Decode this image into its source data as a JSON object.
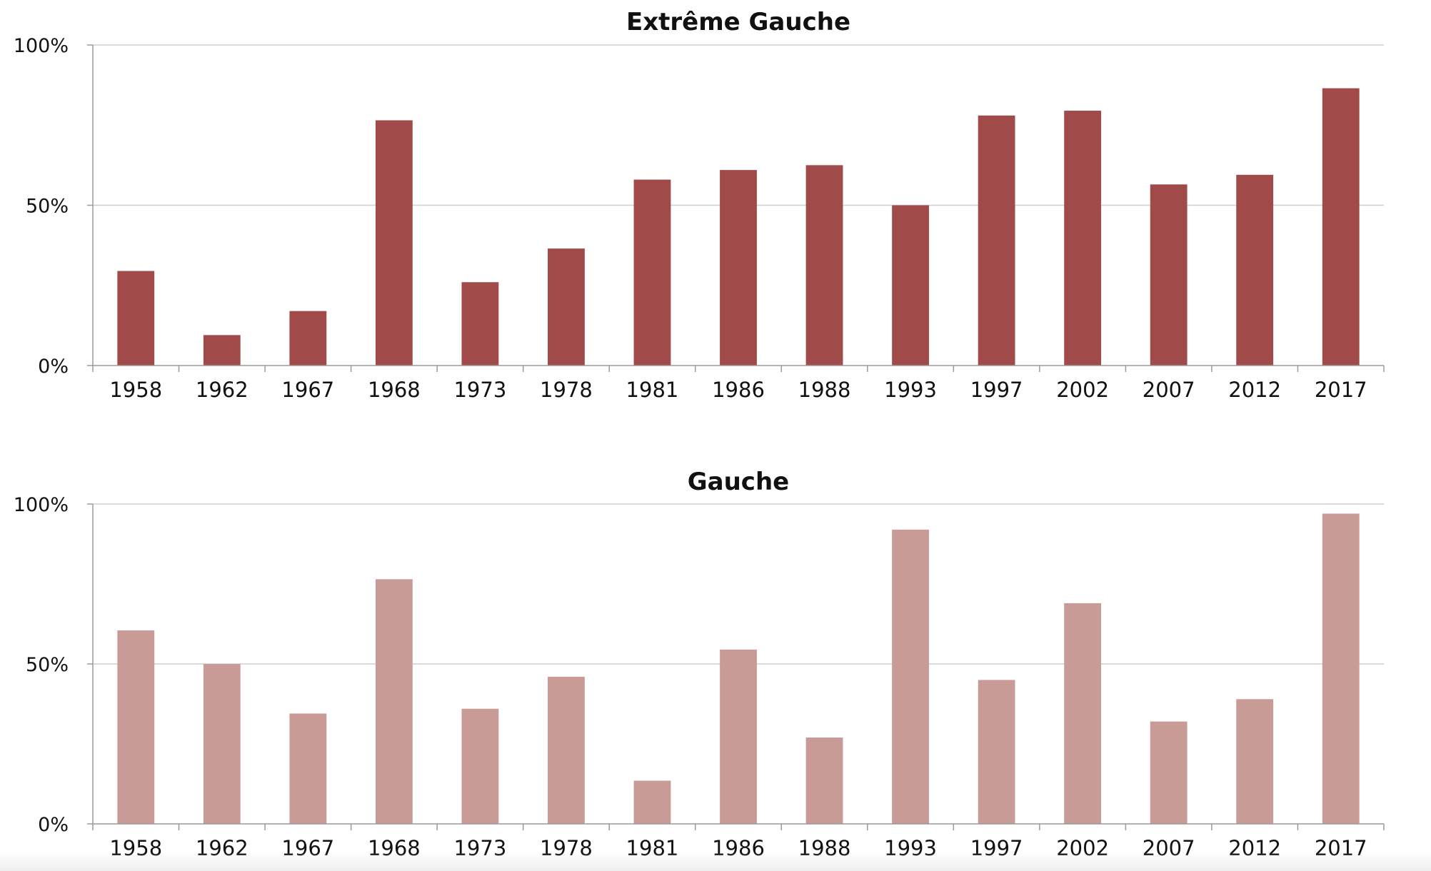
{
  "chart_data": [
    {
      "type": "bar",
      "title": "Extrême Gauche",
      "categories": [
        "1958",
        "1962",
        "1967",
        "1968",
        "1973",
        "1978",
        "1981",
        "1986",
        "1988",
        "1993",
        "1997",
        "2002",
        "2007",
        "2012",
        "2017"
      ],
      "values": [
        29.5,
        9.5,
        17,
        76.5,
        26,
        36.5,
        58,
        61,
        62.5,
        50,
        78,
        79.5,
        56.5,
        59.5,
        86.5
      ],
      "ylim": [
        0,
        100
      ],
      "yticks": [
        "0%",
        "50%",
        "100%"
      ],
      "color": "#a04b49",
      "grid": true
    },
    {
      "type": "bar",
      "title": "Gauche",
      "categories": [
        "1958",
        "1962",
        "1967",
        "1968",
        "1973",
        "1978",
        "1981",
        "1986",
        "1988",
        "1993",
        "1997",
        "2002",
        "2007",
        "2012",
        "2017"
      ],
      "values": [
        60.5,
        50,
        34.5,
        76.5,
        36,
        46,
        13.5,
        54.5,
        27,
        92,
        45,
        69,
        32,
        39,
        97
      ],
      "ylim": [
        0,
        100
      ],
      "yticks": [
        "0%",
        "50%",
        "100%"
      ],
      "color": "#c99b97",
      "grid": true
    }
  ]
}
